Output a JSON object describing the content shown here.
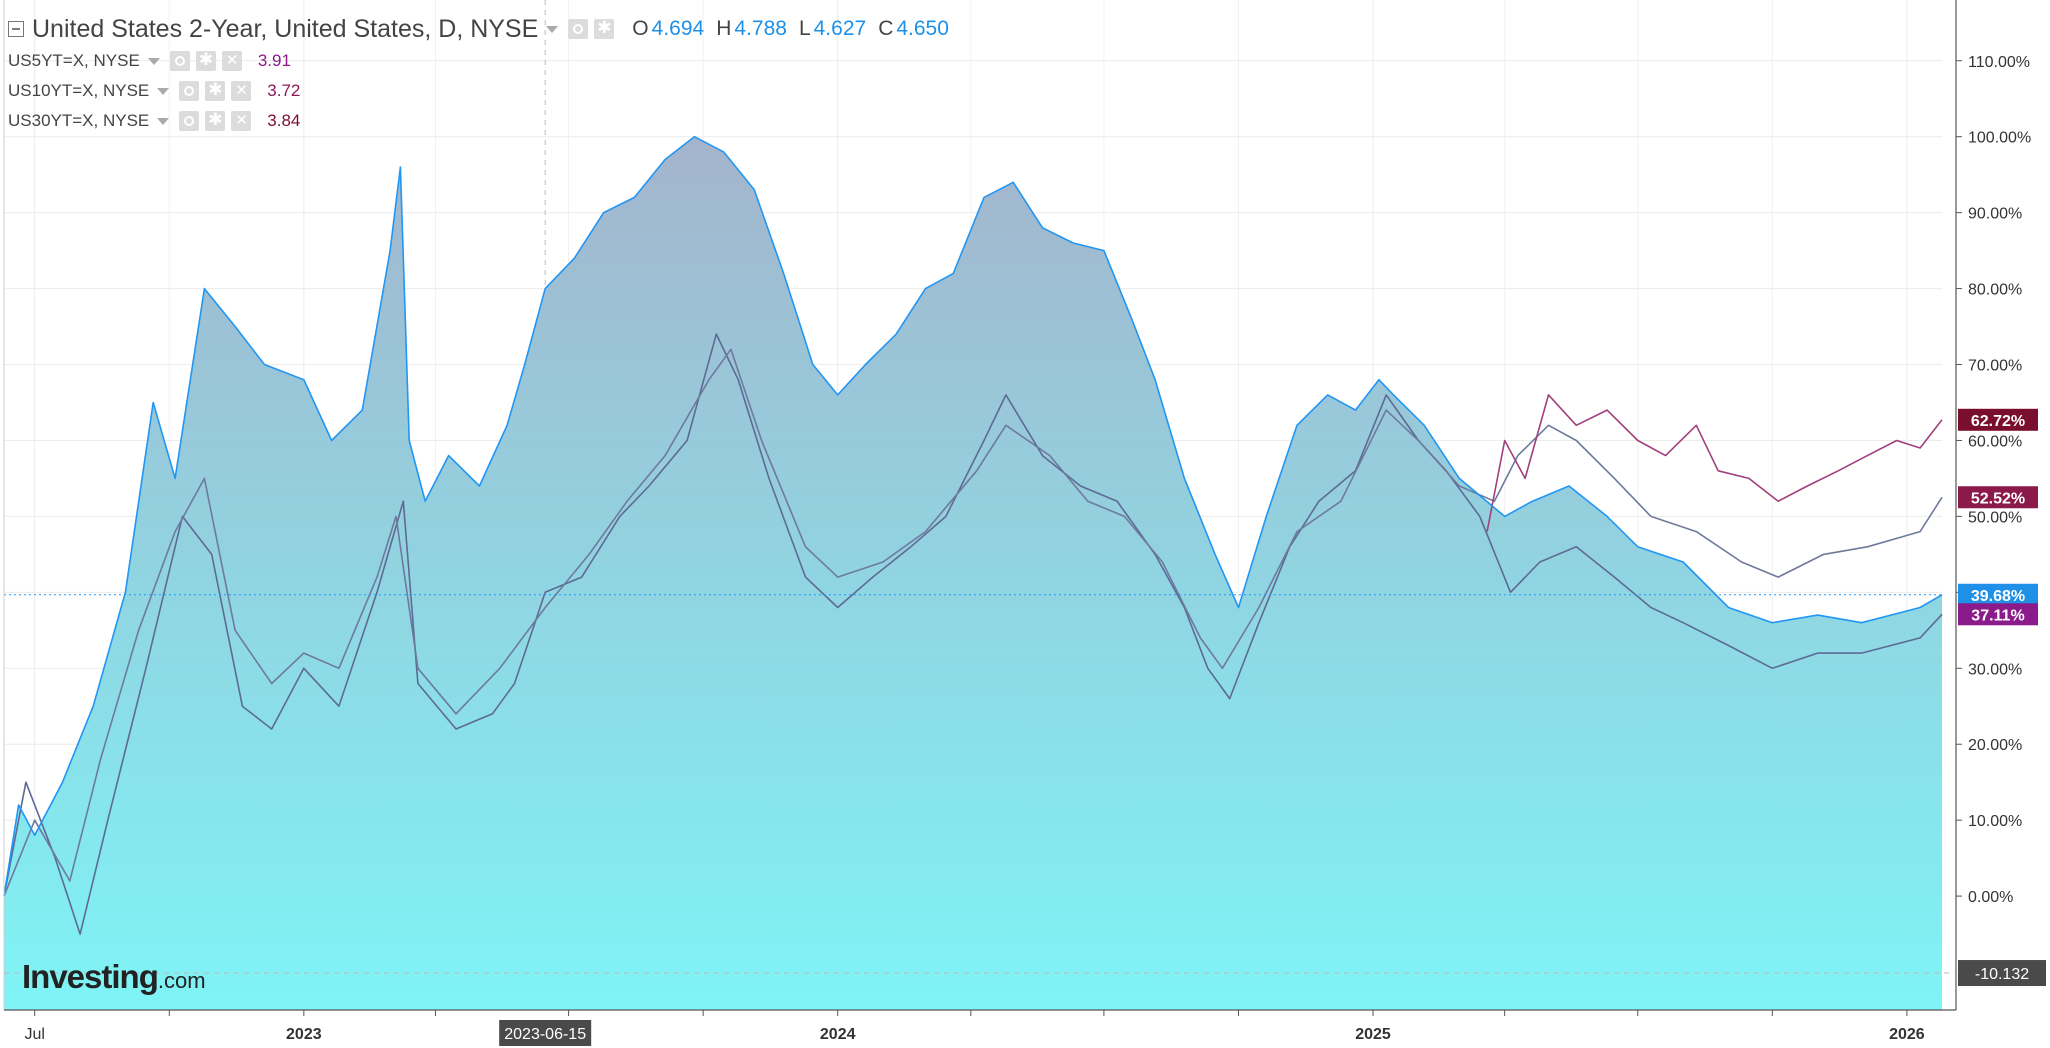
{
  "legend": {
    "main_title": "United States 2-Year, United States, D, NYSE",
    "ohlc": {
      "o_label": "O",
      "o_value": "4.694",
      "h_label": "H",
      "h_value": "4.788",
      "l_label": "L",
      "l_value": "4.627",
      "c_label": "C",
      "c_value": "4.650"
    },
    "compare": [
      {
        "label": "US5YT=X, NYSE",
        "value": "3.91",
        "color": "#8b1a8b"
      },
      {
        "label": "US10YT=X, NYSE",
        "value": "3.72",
        "color": "#8b1a5a"
      },
      {
        "label": "US30YT=X, NYSE",
        "value": "3.84",
        "color": "#7a0e2e"
      }
    ]
  },
  "crosshair": {
    "date_label": "2023-06-15",
    "price_label": "-10.132"
  },
  "watermark": {
    "brand": "Investing",
    "suffix": ".com"
  },
  "colors": {
    "us2y": "#2196f3",
    "us5y": "#5e6a96",
    "us10y": "#6e7a9c",
    "us30y": "#a0407a",
    "badge_us2y": "#1e90e8",
    "badge_us5y": "#8b1a8b",
    "badge_us10y": "#8b1a4a",
    "badge_us30y": "#7a0e2e",
    "fill_top": "#a4b4cc",
    "fill_bottom": "#7ef4f6"
  },
  "chart_data": {
    "type": "area",
    "ylim": [
      -15,
      118
    ],
    "y_ticks": [
      "110.00%",
      "100.00%",
      "90.00%",
      "80.00%",
      "70.00%",
      "60.00%",
      "50.00%",
      "40.00%",
      "30.00%",
      "20.00%",
      "10.00%",
      "0.00%"
    ],
    "y_tick_values": [
      110,
      100,
      90,
      80,
      70,
      60,
      50,
      40,
      30,
      20,
      10,
      0
    ],
    "x_ticks": [
      "Jul",
      "2023",
      "2024",
      "2025",
      "2026"
    ],
    "x_tick_dates": [
      "2022-07-01",
      "2023-01-01",
      "2024-01-01",
      "2025-01-01",
      "2026-01-01"
    ],
    "x_range": [
      "2022-06-10",
      "2026-01-25"
    ],
    "last_values": [
      {
        "series": "US30YT=X",
        "label": "62.72%"
      },
      {
        "series": "US10YT=X",
        "label": "52.52%"
      },
      {
        "series": "United States 2-Year",
        "label": "39.68%"
      },
      {
        "series": "US5YT=X",
        "label": "37.11%"
      }
    ],
    "series": [
      {
        "name": "United States 2-Year",
        "unit": "%",
        "points": [
          [
            "2022-06-10",
            0
          ],
          [
            "2022-06-20",
            12
          ],
          [
            "2022-07-01",
            8
          ],
          [
            "2022-07-20",
            15
          ],
          [
            "2022-08-10",
            25
          ],
          [
            "2022-09-01",
            40
          ],
          [
            "2022-09-20",
            65
          ],
          [
            "2022-10-05",
            55
          ],
          [
            "2022-10-25",
            80
          ],
          [
            "2022-11-15",
            75
          ],
          [
            "2022-12-05",
            70
          ],
          [
            "2023-01-01",
            68
          ],
          [
            "2023-01-20",
            60
          ],
          [
            "2023-02-10",
            64
          ],
          [
            "2023-03-01",
            85
          ],
          [
            "2023-03-08",
            96
          ],
          [
            "2023-03-14",
            60
          ],
          [
            "2023-03-25",
            52
          ],
          [
            "2023-04-10",
            58
          ],
          [
            "2023-05-01",
            54
          ],
          [
            "2023-05-20",
            62
          ],
          [
            "2023-06-01",
            70
          ],
          [
            "2023-06-15",
            80
          ],
          [
            "2023-07-05",
            84
          ],
          [
            "2023-07-25",
            90
          ],
          [
            "2023-08-15",
            92
          ],
          [
            "2023-09-05",
            97
          ],
          [
            "2023-09-25",
            100
          ],
          [
            "2023-10-15",
            98
          ],
          [
            "2023-11-05",
            93
          ],
          [
            "2023-11-25",
            82
          ],
          [
            "2023-12-15",
            70
          ],
          [
            "2024-01-01",
            66
          ],
          [
            "2024-01-20",
            70
          ],
          [
            "2024-02-10",
            74
          ],
          [
            "2024-03-01",
            80
          ],
          [
            "2024-03-20",
            82
          ],
          [
            "2024-04-10",
            92
          ],
          [
            "2024-04-30",
            94
          ],
          [
            "2024-05-20",
            88
          ],
          [
            "2024-06-10",
            86
          ],
          [
            "2024-07-01",
            85
          ],
          [
            "2024-07-20",
            76
          ],
          [
            "2024-08-05",
            68
          ],
          [
            "2024-08-25",
            55
          ],
          [
            "2024-09-15",
            45
          ],
          [
            "2024-10-01",
            38
          ],
          [
            "2024-10-20",
            50
          ],
          [
            "2024-11-10",
            62
          ],
          [
            "2024-12-01",
            66
          ],
          [
            "2024-12-20",
            64
          ],
          [
            "2025-01-05",
            68
          ],
          [
            "2025-01-15",
            66
          ],
          [
            "2025-02-05",
            62
          ],
          [
            "2025-03-01",
            55
          ],
          [
            "2025-04-01",
            50
          ],
          [
            "2025-04-20",
            52
          ],
          [
            "2025-05-15",
            54
          ],
          [
            "2025-06-10",
            50
          ],
          [
            "2025-07-01",
            46
          ],
          [
            "2025-08-01",
            44
          ],
          [
            "2025-09-01",
            38
          ],
          [
            "2025-10-01",
            36
          ],
          [
            "2025-11-01",
            37
          ],
          [
            "2025-12-01",
            36
          ],
          [
            "2026-01-10",
            38
          ],
          [
            "2026-01-25",
            39.68
          ]
        ]
      },
      {
        "name": "US5YT=X",
        "unit": "%",
        "points": [
          [
            "2022-06-10",
            0
          ],
          [
            "2022-06-25",
            15
          ],
          [
            "2022-07-15",
            5
          ],
          [
            "2022-08-01",
            -5
          ],
          [
            "2022-08-20",
            10
          ],
          [
            "2022-09-15",
            30
          ],
          [
            "2022-10-10",
            50
          ],
          [
            "2022-10-30",
            45
          ],
          [
            "2022-11-20",
            25
          ],
          [
            "2022-12-10",
            22
          ],
          [
            "2023-01-01",
            30
          ],
          [
            "2023-01-25",
            25
          ],
          [
            "2023-02-20",
            40
          ],
          [
            "2023-03-10",
            52
          ],
          [
            "2023-03-20",
            28
          ],
          [
            "2023-04-15",
            22
          ],
          [
            "2023-05-10",
            24
          ],
          [
            "2023-05-25",
            28
          ],
          [
            "2023-06-15",
            40
          ],
          [
            "2023-07-10",
            42
          ],
          [
            "2023-08-05",
            50
          ],
          [
            "2023-08-25",
            54
          ],
          [
            "2023-09-20",
            60
          ],
          [
            "2023-10-10",
            74
          ],
          [
            "2023-10-25",
            68
          ],
          [
            "2023-11-15",
            55
          ],
          [
            "2023-12-10",
            42
          ],
          [
            "2024-01-01",
            38
          ],
          [
            "2024-01-25",
            42
          ],
          [
            "2024-02-20",
            46
          ],
          [
            "2024-03-15",
            50
          ],
          [
            "2024-04-10",
            60
          ],
          [
            "2024-04-25",
            66
          ],
          [
            "2024-05-20",
            58
          ],
          [
            "2024-06-15",
            54
          ],
          [
            "2024-07-10",
            52
          ],
          [
            "2024-08-05",
            45
          ],
          [
            "2024-08-25",
            38
          ],
          [
            "2024-09-10",
            30
          ],
          [
            "2024-09-25",
            26
          ],
          [
            "2024-10-15",
            36
          ],
          [
            "2024-11-05",
            46
          ],
          [
            "2024-11-25",
            52
          ],
          [
            "2024-12-20",
            56
          ],
          [
            "2025-01-10",
            66
          ],
          [
            "2025-02-01",
            60
          ],
          [
            "2025-02-20",
            56
          ],
          [
            "2025-03-15",
            50
          ],
          [
            "2025-04-05",
            40
          ],
          [
            "2025-04-25",
            44
          ],
          [
            "2025-05-20",
            46
          ],
          [
            "2025-06-15",
            42
          ],
          [
            "2025-07-10",
            38
          ],
          [
            "2025-08-01",
            36
          ],
          [
            "2025-09-01",
            33
          ],
          [
            "2025-10-01",
            30
          ],
          [
            "2025-11-01",
            32
          ],
          [
            "2025-12-01",
            32
          ],
          [
            "2026-01-10",
            34
          ],
          [
            "2026-01-25",
            37.11
          ]
        ]
      },
      {
        "name": "US10YT=X",
        "unit": "%",
        "points": [
          [
            "2022-06-10",
            0
          ],
          [
            "2022-07-01",
            10
          ],
          [
            "2022-07-25",
            2
          ],
          [
            "2022-08-15",
            18
          ],
          [
            "2022-09-10",
            35
          ],
          [
            "2022-10-05",
            48
          ],
          [
            "2022-10-25",
            55
          ],
          [
            "2022-11-15",
            35
          ],
          [
            "2022-12-10",
            28
          ],
          [
            "2023-01-01",
            32
          ],
          [
            "2023-01-25",
            30
          ],
          [
            "2023-02-20",
            42
          ],
          [
            "2023-03-05",
            50
          ],
          [
            "2023-03-20",
            30
          ],
          [
            "2023-04-15",
            24
          ],
          [
            "2023-05-15",
            30
          ],
          [
            "2023-06-15",
            38
          ],
          [
            "2023-07-15",
            45
          ],
          [
            "2023-08-10",
            52
          ],
          [
            "2023-09-05",
            58
          ],
          [
            "2023-10-05",
            68
          ],
          [
            "2023-10-20",
            72
          ],
          [
            "2023-11-10",
            60
          ],
          [
            "2023-12-10",
            46
          ],
          [
            "2024-01-01",
            42
          ],
          [
            "2024-02-01",
            44
          ],
          [
            "2024-03-01",
            48
          ],
          [
            "2024-04-05",
            56
          ],
          [
            "2024-04-25",
            62
          ],
          [
            "2024-05-25",
            58
          ],
          [
            "2024-06-20",
            52
          ],
          [
            "2024-07-15",
            50
          ],
          [
            "2024-08-10",
            44
          ],
          [
            "2024-09-05",
            34
          ],
          [
            "2024-09-20",
            30
          ],
          [
            "2024-10-15",
            38
          ],
          [
            "2024-11-10",
            48
          ],
          [
            "2024-12-10",
            52
          ],
          [
            "2025-01-10",
            64
          ],
          [
            "2025-02-01",
            60
          ],
          [
            "2025-03-01",
            54
          ],
          [
            "2025-03-25",
            52
          ],
          [
            "2025-04-10",
            58
          ],
          [
            "2025-05-01",
            62
          ],
          [
            "2025-05-20",
            60
          ],
          [
            "2025-06-15",
            55
          ],
          [
            "2025-07-10",
            50
          ],
          [
            "2025-08-10",
            48
          ],
          [
            "2025-09-10",
            44
          ],
          [
            "2025-10-05",
            42
          ],
          [
            "2025-11-05",
            45
          ],
          [
            "2025-12-05",
            46
          ],
          [
            "2026-01-10",
            48
          ],
          [
            "2026-01-25",
            52.52
          ]
        ]
      },
      {
        "name": "US30YT=X",
        "unit": "%",
        "points": [
          [
            "2025-03-20",
            48
          ],
          [
            "2025-04-01",
            60
          ],
          [
            "2025-04-15",
            55
          ],
          [
            "2025-05-01",
            66
          ],
          [
            "2025-05-20",
            62
          ],
          [
            "2025-06-10",
            64
          ],
          [
            "2025-07-01",
            60
          ],
          [
            "2025-07-20",
            58
          ],
          [
            "2025-08-10",
            62
          ],
          [
            "2025-08-25",
            56
          ],
          [
            "2025-09-15",
            55
          ],
          [
            "2025-10-05",
            52
          ],
          [
            "2025-10-25",
            54
          ],
          [
            "2025-11-15",
            56
          ],
          [
            "2025-12-05",
            58
          ],
          [
            "2025-12-25",
            60
          ],
          [
            "2026-01-10",
            59
          ],
          [
            "2026-01-25",
            62.72
          ]
        ]
      }
    ]
  }
}
